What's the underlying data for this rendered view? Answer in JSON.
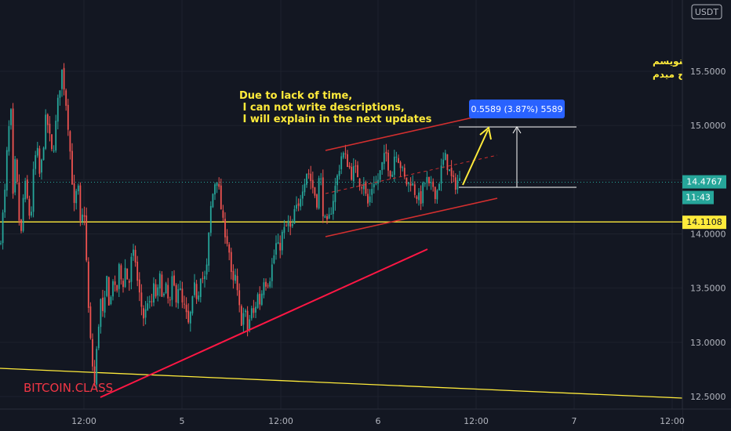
{
  "chart_data": {
    "type": "candlestick",
    "currency_label": "USDT",
    "ylim": [
      12.45,
      15.95
    ],
    "y_ticks": [
      "12.5000",
      "13.0000",
      "13.5000",
      "14.0000",
      "14.5000",
      "15.0000",
      "15.5000"
    ],
    "x_ticks": [
      "12:00",
      "5",
      "12:00",
      "6",
      "12:00",
      "7",
      "12:00"
    ],
    "current_price": "14.4767",
    "countdown": "11:43",
    "support_price": "14.1108",
    "measure_label": "0.5589 (3.87%) 5589",
    "annotation_en": [
      "Due to lack of time,",
      " I can not write descriptions,",
      " I will explain in the next updates"
    ],
    "annotation_fa": [
      "به علت کمبود وقت نمیتونم توضیحات بنویسم",
      "در اپدیت ها بعدی توضیح میدم"
    ],
    "watermark": "BITCOIN.CLASS",
    "colors": {
      "background": "#131722",
      "up": "#26a69a",
      "down": "#ef5350",
      "trendline": "#ff1744",
      "channel": "#d32f2f",
      "support_line": "#ffeb3b",
      "annotation": "#ffeb3b",
      "measure": "#ffffff",
      "tag_blue": "#2962ff",
      "grid": "#1e222d"
    },
    "path_points": [
      [
        0,
        13.9
      ],
      [
        6,
        14.35
      ],
      [
        10,
        14.9
      ],
      [
        14,
        15.1
      ],
      [
        17,
        14.2
      ],
      [
        20,
        14.8
      ],
      [
        23,
        14.2
      ],
      [
        27,
        14.0
      ],
      [
        31,
        14.5
      ],
      [
        35,
        14.3
      ],
      [
        39,
        14.1
      ],
      [
        43,
        14.6
      ],
      [
        47,
        14.8
      ],
      [
        51,
        14.5
      ],
      [
        55,
        14.8
      ],
      [
        59,
        15.1
      ],
      [
        63,
        14.9
      ],
      [
        67,
        14.7
      ],
      [
        71,
        15.0
      ],
      [
        75,
        15.3
      ],
      [
        79,
        15.5
      ],
      [
        83,
        15.3
      ],
      [
        87,
        15.0
      ],
      [
        91,
        14.6
      ],
      [
        95,
        14.2
      ],
      [
        99,
        14.5
      ],
      [
        103,
        14.0
      ],
      [
        107,
        14.3
      ],
      [
        111,
        13.6
      ],
      [
        114,
        13.1
      ],
      [
        117,
        12.9
      ],
      [
        120,
        12.55
      ],
      [
        124,
        13.0
      ],
      [
        128,
        13.4
      ],
      [
        132,
        13.2
      ],
      [
        136,
        13.6
      ],
      [
        140,
        13.3
      ],
      [
        144,
        13.6
      ],
      [
        148,
        13.4
      ],
      [
        152,
        13.7
      ],
      [
        156,
        13.5
      ],
      [
        160,
        13.7
      ],
      [
        164,
        13.5
      ],
      [
        168,
        13.8
      ],
      [
        172,
        13.8
      ],
      [
        176,
        13.5
      ],
      [
        180,
        13.35
      ],
      [
        184,
        13.2
      ],
      [
        188,
        13.4
      ],
      [
        192,
        13.3
      ],
      [
        196,
        13.5
      ],
      [
        200,
        13.4
      ],
      [
        204,
        13.6
      ],
      [
        208,
        13.4
      ],
      [
        212,
        13.5
      ],
      [
        216,
        13.3
      ],
      [
        220,
        13.6
      ],
      [
        224,
        13.4
      ],
      [
        228,
        13.55
      ],
      [
        232,
        13.35
      ],
      [
        236,
        13.3
      ],
      [
        240,
        13.15
      ],
      [
        244,
        13.3
      ],
      [
        248,
        13.5
      ],
      [
        252,
        13.4
      ],
      [
        256,
        13.65
      ],
      [
        260,
        13.55
      ],
      [
        264,
        13.7
      ],
      [
        268,
        14.2
      ],
      [
        272,
        14.4
      ],
      [
        276,
        14.55
      ],
      [
        280,
        14.35
      ],
      [
        284,
        14.1
      ],
      [
        288,
        14.0
      ],
      [
        292,
        13.85
      ],
      [
        296,
        13.5
      ],
      [
        300,
        13.6
      ],
      [
        304,
        13.35
      ],
      [
        308,
        13.2
      ],
      [
        312,
        13.3
      ],
      [
        316,
        13.1
      ],
      [
        320,
        13.3
      ],
      [
        324,
        13.25
      ],
      [
        328,
        13.45
      ],
      [
        332,
        13.35
      ],
      [
        336,
        13.6
      ],
      [
        340,
        13.55
      ],
      [
        344,
        13.6
      ],
      [
        348,
        13.75
      ],
      [
        352,
        13.9
      ],
      [
        356,
        13.85
      ],
      [
        360,
        14.0
      ],
      [
        364,
        14.05
      ],
      [
        368,
        14.1
      ],
      [
        372,
        14.0
      ],
      [
        376,
        14.25
      ],
      [
        380,
        14.2
      ],
      [
        384,
        14.4
      ],
      [
        388,
        14.5
      ],
      [
        392,
        14.6
      ],
      [
        396,
        14.5
      ],
      [
        400,
        14.4
      ],
      [
        404,
        14.3
      ],
      [
        408,
        14.6
      ],
      [
        412,
        14.2
      ],
      [
        416,
        14.05
      ],
      [
        420,
        14.15
      ],
      [
        424,
        14.3
      ],
      [
        428,
        14.45
      ],
      [
        432,
        14.6
      ],
      [
        436,
        14.75
      ],
      [
        440,
        14.7
      ],
      [
        444,
        14.65
      ],
      [
        448,
        14.55
      ],
      [
        452,
        14.6
      ],
      [
        456,
        14.55
      ],
      [
        460,
        14.45
      ],
      [
        464,
        14.5
      ],
      [
        468,
        14.25
      ],
      [
        472,
        14.35
      ],
      [
        476,
        14.5
      ],
      [
        480,
        14.45
      ],
      [
        484,
        14.55
      ],
      [
        488,
        14.65
      ],
      [
        492,
        14.75
      ],
      [
        496,
        14.6
      ],
      [
        500,
        14.55
      ],
      [
        504,
        14.8
      ],
      [
        508,
        14.7
      ],
      [
        512,
        14.6
      ],
      [
        516,
        14.5
      ],
      [
        520,
        14.45
      ],
      [
        524,
        14.5
      ],
      [
        528,
        14.4
      ],
      [
        532,
        14.35
      ],
      [
        536,
        14.3
      ],
      [
        540,
        14.45
      ],
      [
        544,
        14.5
      ],
      [
        548,
        14.4
      ],
      [
        552,
        14.45
      ],
      [
        556,
        14.35
      ],
      [
        560,
        14.5
      ],
      [
        564,
        14.65
      ],
      [
        568,
        14.7
      ],
      [
        572,
        14.6
      ],
      [
        576,
        14.5
      ],
      [
        580,
        14.45
      ],
      [
        584,
        14.5
      ],
      [
        587,
        14.48
      ]
    ]
  }
}
